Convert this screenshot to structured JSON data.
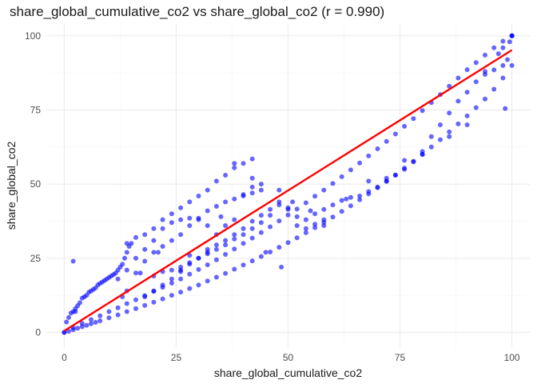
{
  "chart_data": {
    "type": "scatter",
    "title": "share_global_cumulative_co2 vs share_global_co2 (r = 0.990)",
    "xlabel": "share_global_cumulative_co2",
    "ylabel": "share_global_co2",
    "xlim": [
      -4,
      104
    ],
    "ylim": [
      -5,
      104
    ],
    "x_ticks": [
      0,
      25,
      50,
      75,
      100
    ],
    "y_ticks": [
      0,
      25,
      50,
      75,
      100
    ],
    "x_tick_labels": [
      "0",
      "25",
      "50",
      "75",
      "100"
    ],
    "y_tick_labels": [
      "0",
      "25",
      "50",
      "75",
      "100"
    ],
    "grid": true,
    "legend": "none",
    "point_color": "#0000ff",
    "line_color": "#ff0000",
    "regression_line": {
      "x": [
        0,
        100
      ],
      "y": [
        0.5,
        95.2
      ]
    },
    "series": [
      {
        "role": "main-band-lower",
        "x": [
          0,
          1,
          2,
          3,
          4,
          5,
          6,
          7,
          8,
          10,
          12,
          14,
          16,
          18,
          20,
          22,
          24,
          26,
          28,
          30,
          32,
          34,
          36,
          38,
          40,
          42,
          44,
          46,
          48,
          50,
          52,
          54,
          56,
          58,
          60,
          62,
          64,
          66,
          68,
          70,
          72,
          74,
          76,
          78,
          80,
          82,
          84,
          86,
          88,
          90,
          92,
          94,
          96,
          98,
          100
        ],
        "y": [
          0,
          0.4,
          0.9,
          1.4,
          1.9,
          2.4,
          2.9,
          3.4,
          3.9,
          4.9,
          5.9,
          7.0,
          8.0,
          9.1,
          10.2,
          11.3,
          12.5,
          13.6,
          14.8,
          16.0,
          17.3,
          18.6,
          19.9,
          21.3,
          22.7,
          24.1,
          25.6,
          27.1,
          28.7,
          30.3,
          31.9,
          33.6,
          35.3,
          37.1,
          38.9,
          40.8,
          42.7,
          44.7,
          46.7,
          48.8,
          50.9,
          53.1,
          55.4,
          57.7,
          60.1,
          62.5,
          65.0,
          67.6,
          70.3,
          73.0,
          75.8,
          78.7,
          82.0,
          85.8,
          90.0
        ]
      },
      {
        "role": "main-band-middle",
        "x": [
          0,
          2,
          4,
          6,
          8,
          10,
          12,
          14,
          16,
          18,
          20,
          22,
          24,
          26,
          28,
          30,
          32,
          34,
          36,
          38,
          40,
          42,
          44,
          46,
          48,
          50,
          52,
          54,
          56,
          58,
          60,
          62,
          64,
          66,
          68,
          70,
          72,
          74,
          76,
          78,
          80,
          82,
          84,
          86,
          88,
          90,
          92,
          94,
          96,
          98,
          100
        ],
        "y": [
          0,
          1.6,
          3.0,
          4.3,
          5.6,
          7.0,
          8.3,
          9.7,
          11.0,
          12.4,
          13.8,
          15.2,
          16.6,
          18.0,
          19.6,
          21.2,
          22.8,
          24.5,
          26.3,
          28.1,
          30.0,
          31.8,
          33.7,
          35.6,
          37.6,
          39.6,
          41.6,
          43.7,
          45.9,
          48.0,
          50.2,
          52.5,
          54.8,
          57.1,
          59.5,
          61.9,
          64.4,
          66.9,
          69.5,
          72.1,
          74.8,
          77.5,
          80.2,
          83.0,
          85.8,
          88.6,
          91.0,
          93.5,
          96.0,
          98.2,
          100
        ]
      },
      {
        "role": "main-band-upper",
        "x": [
          20,
          22,
          24,
          26,
          28,
          30,
          32,
          34,
          36,
          38,
          40,
          42,
          44,
          46,
          48,
          50,
          52,
          54,
          56,
          58,
          60,
          62,
          64,
          66,
          68,
          70,
          72,
          74,
          76,
          78,
          80,
          82,
          84,
          86,
          88,
          90,
          92,
          94,
          96,
          98,
          100
        ],
        "y": [
          19.0,
          20.5,
          21.0,
          22.0,
          23.5,
          25.0,
          27.0,
          29.5,
          31.0,
          33.0,
          35.0,
          37.5,
          39.5,
          41.5,
          44.0,
          42.0,
          39.0,
          38.0,
          40.0,
          41.5,
          43.0,
          44.5,
          45.5,
          46.0,
          47.5,
          49.0,
          51.0,
          53.0,
          55.0,
          57.5,
          61.0,
          66.0,
          70.0,
          74.0,
          78.0,
          81.0,
          84.5,
          87.0,
          88.5,
          90.0,
          100
        ]
      },
      {
        "role": "band-25-to-50",
        "x": [
          18,
          20,
          22,
          24,
          26,
          28,
          30,
          32,
          34,
          36,
          38,
          40,
          42,
          44,
          46,
          48,
          50,
          52,
          54,
          56,
          58
        ],
        "y": [
          12.0,
          14.0,
          16.0,
          18.0,
          20.5,
          23.0,
          25.0,
          26.5,
          28.0,
          29.5,
          31.5,
          33.0,
          35.0,
          37.0,
          39.5,
          43.0,
          41.5,
          36.0,
          35.0,
          36.5,
          38.0
        ]
      },
      {
        "role": "cluster-early",
        "x": [
          0.5,
          1,
          1.5,
          2,
          2.5,
          3,
          3.5,
          4,
          4.5,
          5,
          5.5,
          6,
          6.5,
          7,
          7.5,
          8,
          8.5,
          9,
          9.5,
          10,
          10.5,
          11,
          11.5,
          12,
          12.5,
          13,
          13.5,
          14,
          14.5,
          15
        ],
        "y": [
          3.5,
          5.0,
          6.5,
          7.0,
          8.0,
          9.0,
          10.0,
          11.5,
          12.0,
          12.5,
          13.5,
          14.0,
          14.5,
          15.0,
          16.0,
          16.5,
          17.0,
          17.5,
          18.0,
          18.5,
          19.0,
          19.5,
          20.0,
          21.0,
          22.0,
          23.0,
          25.0,
          27.0,
          29.0,
          30.0
        ]
      },
      {
        "role": "upper-arm-a",
        "x": [
          14,
          16,
          18,
          20,
          22,
          24,
          26,
          28,
          30,
          32,
          34,
          36,
          38,
          40,
          42
        ],
        "y": [
          30.0,
          32.0,
          33.0,
          35.0,
          38.0,
          40.0,
          42.0,
          44.0,
          46.0,
          48.0,
          51.0,
          53.0,
          55.5,
          57.0,
          58.5
        ]
      },
      {
        "role": "upper-arm-b",
        "x": [
          12,
          14,
          16,
          18,
          20,
          22,
          24,
          26,
          28,
          30,
          32,
          34,
          36,
          38,
          40,
          42,
          44
        ],
        "y": [
          18.0,
          21.0,
          25.0,
          28.0,
          31.0,
          35.0,
          37.0,
          38.0,
          38.5,
          38.0,
          36.0,
          33.0,
          36.0,
          38.0,
          46.0,
          49.0,
          50.0
        ]
      },
      {
        "role": "upper-arm-c",
        "x": [
          16,
          18,
          20,
          22,
          24,
          26,
          28,
          30,
          32,
          34,
          36,
          38,
          40,
          42,
          44
        ],
        "y": [
          20.0,
          24.0,
          27.0,
          29.0,
          31.0,
          33.0,
          36.0,
          38.5,
          41.0,
          42.5,
          44.0,
          45.0,
          46.5,
          47.0,
          48.0
        ]
      },
      {
        "role": "scattered",
        "x": [
          2,
          2.5,
          13,
          14,
          17,
          21,
          26,
          28,
          32,
          35,
          38,
          42,
          45,
          48.5,
          51,
          48,
          55,
          58,
          63,
          68,
          72,
          76,
          80,
          86,
          90,
          94,
          98.5,
          99,
          100,
          99.5,
          98,
          97
        ],
        "y": [
          24,
          7,
          12,
          14,
          20,
          27,
          21,
          26,
          28,
          39,
          57,
          52,
          27,
          22,
          44,
          48,
          41,
          36,
          45,
          51,
          52,
          58,
          60,
          66,
          70,
          88,
          75.5,
          92,
          100,
          98,
          96,
          94
        ]
      }
    ]
  }
}
